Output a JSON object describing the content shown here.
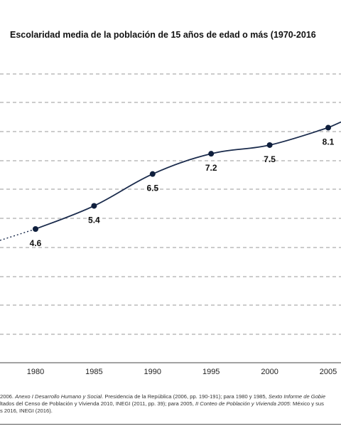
{
  "chart_data": {
    "type": "line",
    "title": "Escolaridad media de la población de 15 años de edad o más (1970-2016",
    "xlabel": "",
    "ylabel": "",
    "x_ticks": [
      "1980",
      "1985",
      "1990",
      "1995",
      "2000",
      "2005"
    ],
    "series": [
      {
        "points": [
          {
            "x": 1980,
            "y": 4.6,
            "label": "4.6"
          },
          {
            "x": 1985,
            "y": 5.4,
            "label": "5.4"
          },
          {
            "x": 1990,
            "y": 6.5,
            "label": "6.5"
          },
          {
            "x": 1995,
            "y": 7.2,
            "label": "7.2"
          },
          {
            "x": 2000,
            "y": 7.5,
            "label": "7.5"
          },
          {
            "x": 2005,
            "y": 8.1,
            "label": "8.1"
          }
        ]
      }
    ],
    "grid": "horizontal dashed",
    "line_color": "#1a2b4c"
  },
  "source": {
    "line1_a": "2006. ",
    "line1_b": "Anexo I Desarrollo Humano y Social",
    "line1_c": ". Presidencia de la República (2006, pp. 190-191); para 1980 y 1985, ",
    "line1_d": "Sexto Informe de Gobie",
    "line2_a": "ltados del Censo de Población y Vivienda 2010, INEGI (2011, pp. 39); para 2005, ",
    "line2_b": "II Conteo de Población y Vivienda 2005",
    "line2_c": ": México y sus",
    "line3": "s 2016, INEGI (2016)."
  }
}
